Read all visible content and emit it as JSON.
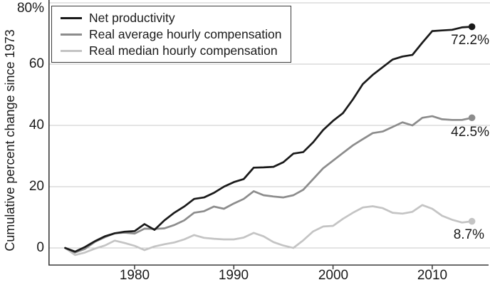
{
  "colors": {
    "background": "#ffffff",
    "axis": "#3a3a3a",
    "gridline": "#c9c9c9",
    "text": "#1a1a1a"
  },
  "chart_data": {
    "type": "line",
    "title": "",
    "xlabel": "",
    "ylabel": "Cumulative percent change since 1973",
    "grid": "horizontal",
    "legend_position": "top-left-inside",
    "xtick_labels": [
      "1980",
      "1990",
      "2000",
      "2010"
    ],
    "xtick_values": [
      1980,
      1990,
      2000,
      2010
    ],
    "ytick_labels": [
      "80%",
      "60",
      "40",
      "20",
      "0"
    ],
    "ytick_values": [
      80,
      60,
      40,
      20,
      0
    ],
    "xlim": [
      1971.3,
      2015.9
    ],
    "ylim": [
      -5.6,
      80.5
    ],
    "x": [
      1973,
      1974,
      1975,
      1976,
      1977,
      1978,
      1979,
      1980,
      1981,
      1982,
      1983,
      1984,
      1985,
      1986,
      1987,
      1988,
      1989,
      1990,
      1991,
      1992,
      1993,
      1994,
      1995,
      1996,
      1997,
      1998,
      1999,
      2000,
      2001,
      2002,
      2003,
      2004,
      2005,
      2006,
      2007,
      2008,
      2009,
      2010,
      2011,
      2012,
      2013,
      2014
    ],
    "series": [
      {
        "name": "Net productivity",
        "color": "#1a1a1a",
        "end_label": "72.2%",
        "end_value": 72.2,
        "values": [
          0,
          -1.2,
          0.3,
          2.2,
          3.8,
          4.8,
          5.3,
          5.5,
          7.8,
          5.9,
          9.0,
          11.5,
          13.5,
          16.0,
          16.5,
          18.0,
          20.0,
          21.5,
          22.5,
          26.2,
          26.3,
          26.5,
          28.0,
          30.8,
          31.3,
          34.5,
          38.5,
          41.5,
          44.0,
          48.5,
          53.5,
          56.5,
          59.0,
          61.5,
          62.5,
          63.0,
          67.0,
          70.8,
          71.0,
          71.2,
          72.0,
          72.2
        ]
      },
      {
        "name": "Real average hourly compensation",
        "color": "#8c8c8c",
        "end_label": "42.5%",
        "end_value": 42.5,
        "values": [
          0,
          -1.5,
          -0.3,
          2.0,
          3.5,
          4.8,
          5.0,
          4.7,
          6.3,
          6.2,
          6.4,
          7.5,
          9.0,
          11.5,
          12.0,
          13.5,
          12.8,
          14.5,
          16.0,
          18.5,
          17.2,
          16.8,
          16.5,
          17.2,
          19.0,
          22.5,
          26.0,
          28.5,
          31.0,
          33.5,
          35.5,
          37.5,
          38.0,
          39.5,
          41.0,
          40.0,
          42.5,
          43.0,
          42.0,
          41.8,
          41.8,
          42.5
        ]
      },
      {
        "name": "Real median hourly compensation",
        "color": "#c4c4c4",
        "end_label": "8.7%",
        "end_value": 8.7,
        "values": [
          0,
          -2.3,
          -1.5,
          -0.2,
          0.8,
          2.4,
          1.6,
          0.7,
          -0.7,
          0.5,
          1.2,
          1.8,
          2.8,
          4.2,
          3.3,
          3.0,
          2.8,
          2.8,
          3.4,
          4.9,
          3.8,
          1.9,
          0.8,
          0.0,
          2.5,
          5.4,
          7.0,
          7.2,
          9.5,
          11.5,
          13.2,
          13.6,
          13.0,
          11.5,
          11.2,
          11.8,
          14.0,
          12.8,
          10.5,
          9.2,
          8.3,
          8.7
        ]
      }
    ]
  }
}
